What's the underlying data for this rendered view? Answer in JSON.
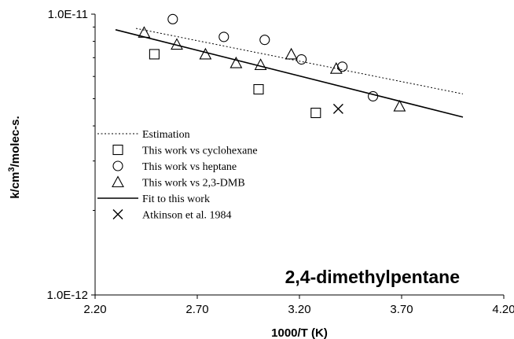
{
  "chart_data": {
    "type": "scatter",
    "xlabel": "1000/T (K)",
    "ylabel": "k/cm³/molec-s.",
    "xlim": [
      2.2,
      4.2
    ],
    "ylim": [
      1e-12,
      1e-11
    ],
    "yscale": "log",
    "x_ticks": [
      "2.20",
      "2.70",
      "3.20",
      "3.70",
      "4.20"
    ],
    "y_ticks": [
      "1.0E-12",
      "1.0E-11"
    ],
    "annotation": "2,4-dimethylpentane",
    "grid": false,
    "legend_position": "center-left",
    "series": [
      {
        "name": "Estimation",
        "kind": "line",
        "style": "dotted",
        "x": [
          2.4,
          4.0
        ],
        "y": [
          8.9e-12,
          5.2e-12
        ]
      },
      {
        "name": "This work vs cyclohexane",
        "kind": "scatter",
        "marker": "square",
        "x": [
          2.49,
          3.0,
          3.28
        ],
        "y": [
          7.2e-12,
          5.4e-12,
          4.45e-12
        ]
      },
      {
        "name": "This work vs heptane",
        "kind": "scatter",
        "marker": "circle",
        "x": [
          2.58,
          2.83,
          3.03,
          3.21,
          3.41,
          3.56
        ],
        "y": [
          9.6e-12,
          8.3e-12,
          8.1e-12,
          6.9e-12,
          6.5e-12,
          5.1e-12
        ]
      },
      {
        "name": "This work vs 2,3-DMB",
        "kind": "scatter",
        "marker": "triangle",
        "x": [
          2.44,
          2.6,
          2.74,
          2.89,
          3.01,
          3.16,
          3.38,
          3.69
        ],
        "y": [
          8.6e-12,
          7.8e-12,
          7.2e-12,
          6.7e-12,
          6.6e-12,
          7.2e-12,
          6.4e-12,
          4.7e-12
        ]
      },
      {
        "name": "Fit to this work",
        "kind": "line",
        "style": "solid",
        "x": [
          2.3,
          4.0
        ],
        "y": [
          8.8e-12,
          4.3e-12
        ]
      },
      {
        "name": "Atkinson et al. 1984",
        "kind": "scatter",
        "marker": "x",
        "x": [
          3.39
        ],
        "y": [
          4.6e-12
        ]
      }
    ]
  }
}
